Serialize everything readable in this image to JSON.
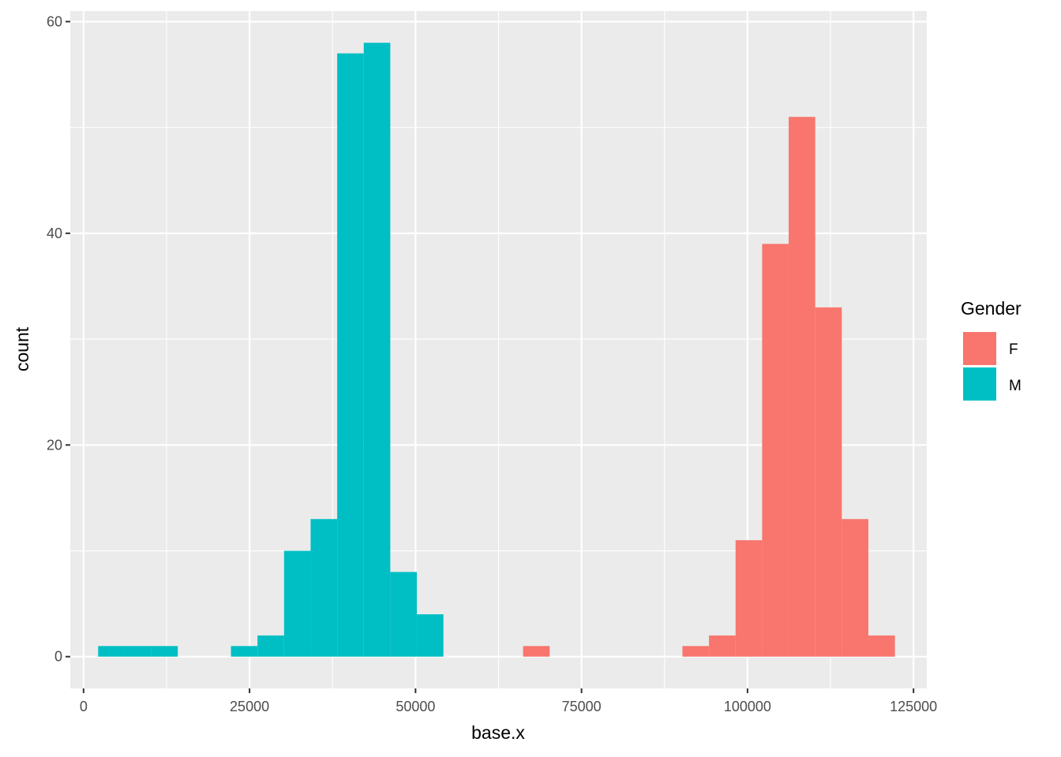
{
  "chart_data": {
    "type": "bar",
    "subtype": "stacked-histogram",
    "title": "",
    "xlabel": "base.x",
    "ylabel": "count",
    "xlim": [
      -2000,
      127000
    ],
    "ylim": [
      -3,
      61
    ],
    "x_ticks": [
      0,
      25000,
      50000,
      75000,
      100000,
      125000
    ],
    "x_tick_labels": [
      "0",
      "25000",
      "50000",
      "75000",
      "100000",
      "125000"
    ],
    "y_ticks": [
      0,
      20,
      40,
      60
    ],
    "y_tick_labels": [
      "0",
      "20",
      "40",
      "60"
    ],
    "grid": true,
    "legend": {
      "title": "Gender",
      "position": "right"
    },
    "bin_width": 4000,
    "bin_starts": [
      2200,
      6200,
      10200,
      14200,
      18200,
      22200,
      26200,
      30200,
      34200,
      38200,
      42200,
      46200,
      50200,
      54200,
      58200,
      62200,
      66200,
      70200,
      74200,
      78200,
      82200,
      86200,
      90200,
      94200,
      98200,
      102200,
      106200,
      110200,
      114200,
      118200
    ],
    "series": [
      {
        "name": "F",
        "color": "#F8766D",
        "values": [
          0,
          0,
          0,
          0,
          0,
          0,
          0,
          0,
          0,
          0,
          0,
          0,
          0,
          0,
          0,
          0,
          1,
          0,
          0,
          0,
          0,
          0,
          1,
          2,
          11,
          39,
          51,
          33,
          13,
          2
        ]
      },
      {
        "name": "M",
        "color": "#00BFC4",
        "values": [
          1,
          1,
          1,
          0,
          0,
          1,
          2,
          10,
          13,
          57,
          58,
          8,
          4,
          0,
          0,
          0,
          0,
          0,
          0,
          0,
          0,
          0,
          0,
          0,
          0,
          0,
          0,
          0,
          0,
          0
        ]
      }
    ]
  }
}
